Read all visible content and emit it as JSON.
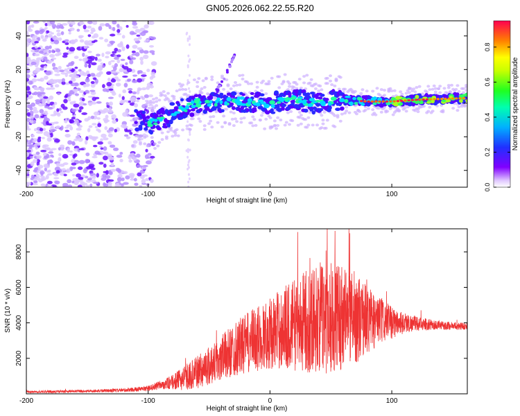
{
  "figure_title": "GN05.2026.062.22.55.R20",
  "chart_data": [
    {
      "type": "heatmap",
      "title": "GN05.2026.062.22.55.R20",
      "xlabel": "Height of straight line (km)",
      "ylabel": "Frequency (Hz)",
      "xlim": [
        -200,
        162
      ],
      "ylim": [
        -50,
        49
      ],
      "xticks": [
        -200,
        -100,
        0,
        100
      ],
      "yticks": [
        -40,
        -20,
        0,
        20,
        40
      ],
      "colorbar": {
        "label": "Normalized spectral amplitude",
        "range": [
          0.0,
          0.95
        ],
        "ticks": [
          0.0,
          0.2,
          0.4,
          0.6,
          0.8
        ],
        "colormap": [
          "#ffffff",
          "#c8a8ff",
          "#7a00ff",
          "#2020ff",
          "#00c8ff",
          "#00ff60",
          "#ffff00",
          "#ff8000",
          "#ff0040"
        ]
      },
      "ridge": {
        "description_points_km": [
          -160,
          -110,
          -95,
          -80,
          -60,
          -40,
          -20,
          0,
          20,
          40,
          60,
          80,
          100,
          120,
          160
        ],
        "frequency_hz": [
          -8,
          -10,
          -12,
          -6,
          0,
          1,
          1,
          0,
          2,
          0,
          2,
          1,
          1,
          2,
          3
        ]
      }
    },
    {
      "type": "line",
      "xlabel": "Height of straight line (km)",
      "ylabel": "SNR (10 * v/v)",
      "xlim": [
        -200,
        162
      ],
      "ylim": [
        0,
        9300
      ],
      "xticks": [
        -200,
        -100,
        0,
        100
      ],
      "yticks": [
        2000,
        4000,
        6000,
        8000
      ],
      "series": [
        {
          "name": "SNR",
          "color": "#ee3333",
          "envelope_x": [
            -200,
            -150,
            -120,
            -100,
            -90,
            -80,
            -70,
            -60,
            -50,
            -40,
            -30,
            -20,
            -10,
            0,
            10,
            20,
            30,
            40,
            50,
            60,
            70,
            80,
            90,
            100,
            110,
            120,
            140,
            162
          ],
          "envelope_mean": [
            100,
            150,
            200,
            300,
            500,
            650,
            900,
            1200,
            1600,
            2000,
            2500,
            2800,
            3100,
            3400,
            3700,
            3900,
            4100,
            4300,
            4400,
            4400,
            4300,
            4200,
            4100,
            4000,
            4000,
            3950,
            3850,
            3800
          ],
          "envelope_amp": [
            60,
            80,
            100,
            150,
            250,
            400,
            700,
            900,
            1100,
            1300,
            1500,
            1700,
            1900,
            2000,
            2300,
            2600,
            2900,
            3100,
            3300,
            3000,
            2600,
            2000,
            1400,
            900,
            600,
            400,
            250,
            200
          ],
          "peak_value": 9300,
          "peak_x": 47
        }
      ]
    }
  ]
}
